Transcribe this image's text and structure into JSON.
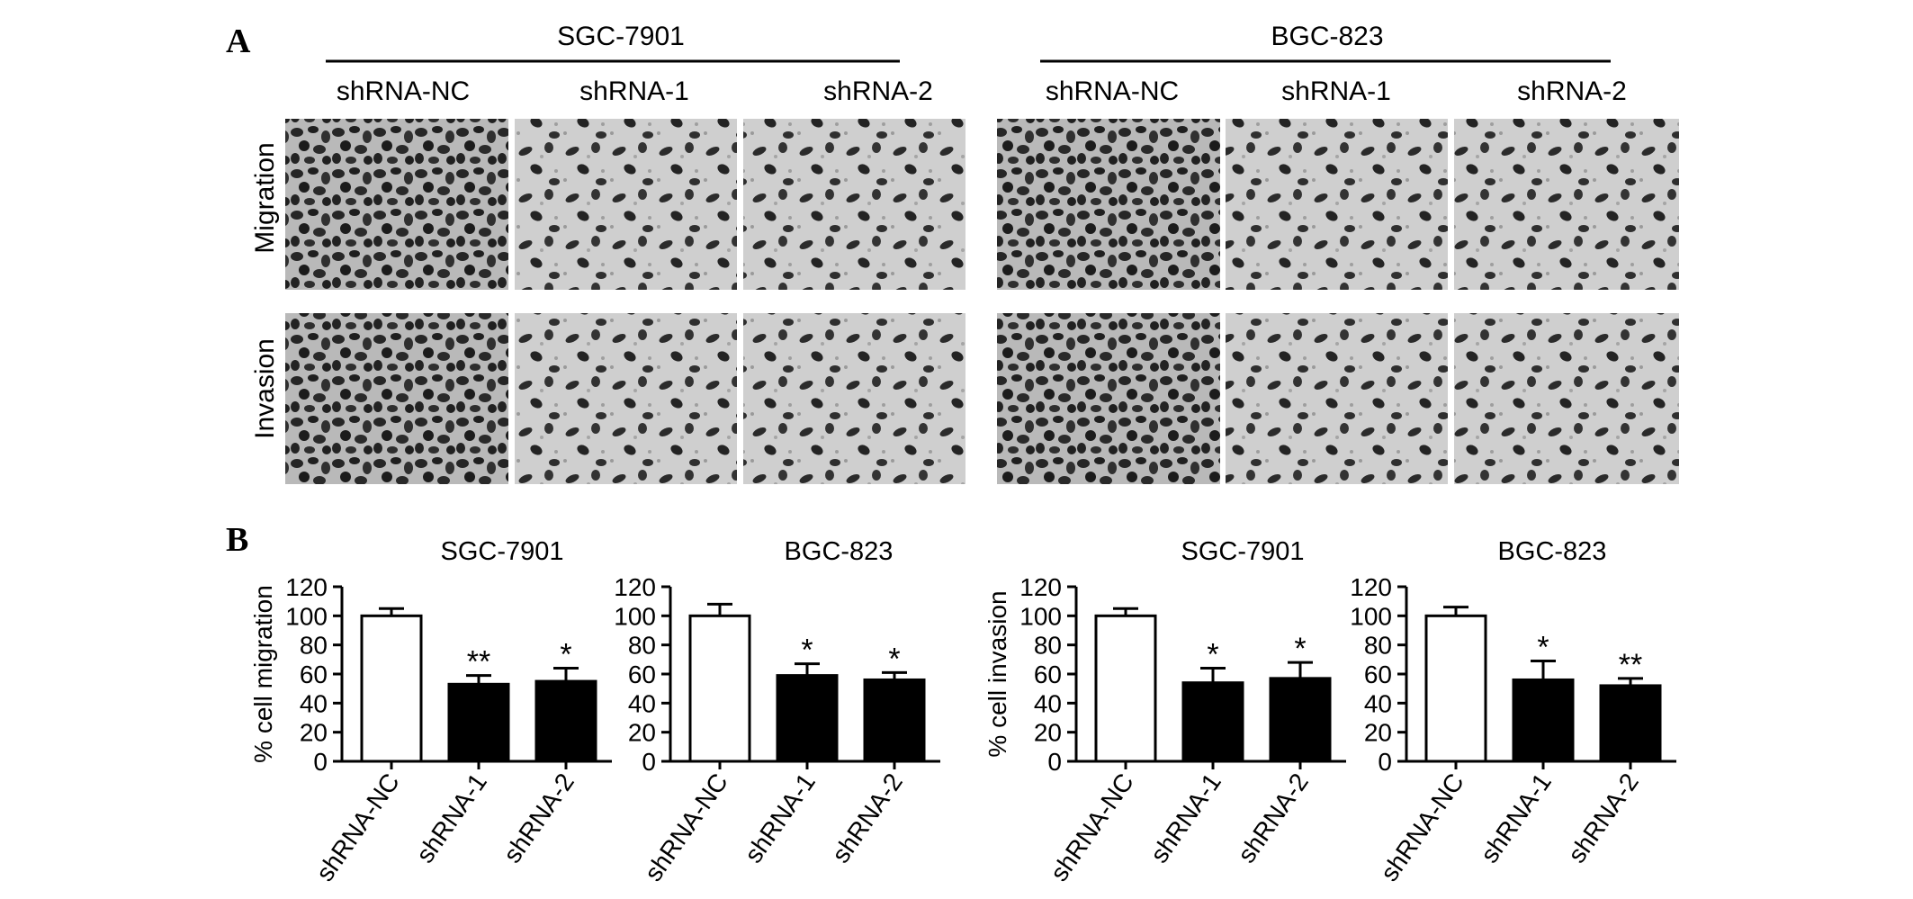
{
  "figure": {
    "panel_a": {
      "letter": "A",
      "groups": [
        {
          "title": "SGC-7901",
          "columns": [
            "shRNA-NC",
            "shRNA-1",
            "shRNA-2"
          ]
        },
        {
          "title": "BGC-823",
          "columns": [
            "shRNA-NC",
            "shRNA-1",
            "shRNA-2"
          ]
        }
      ],
      "rows": [
        "Migration",
        "Invasion"
      ],
      "image_density": {
        "note_levels": "relative cell density shown by the micrographs",
        "Migration": [
          [
            0.95,
            0.55,
            0.55
          ],
          [
            0.9,
            0.5,
            0.5
          ]
        ],
        "Invasion": [
          [
            0.95,
            0.5,
            0.5
          ],
          [
            0.9,
            0.5,
            0.5
          ]
        ]
      }
    },
    "panel_b": {
      "letter": "B"
    },
    "colors": {
      "control_fill": "#ffffff",
      "knockdown_fill": "#000000",
      "axis": "#000000"
    }
  },
  "chart_data": [
    {
      "type": "bar",
      "title": "SGC-7901",
      "ylabel": "% cell migration",
      "categories": [
        "shRNA-NC",
        "shRNA-1",
        "shRNA-2"
      ],
      "values": [
        100,
        53,
        55
      ],
      "errors": [
        5,
        6,
        9
      ],
      "significance": [
        "",
        "**",
        "*"
      ],
      "ylim": [
        0,
        120
      ],
      "yticks": [
        "0",
        "20",
        "40",
        "60",
        "80",
        "100",
        "120"
      ]
    },
    {
      "type": "bar",
      "title": "BGC-823",
      "ylabel": "",
      "categories": [
        "shRNA-NC",
        "shRNA-1",
        "shRNA-2"
      ],
      "values": [
        100,
        59,
        56
      ],
      "errors": [
        8,
        8,
        5
      ],
      "significance": [
        "",
        "*",
        "*"
      ],
      "ylim": [
        0,
        120
      ],
      "yticks": [
        "0",
        "20",
        "40",
        "60",
        "80",
        "100",
        "120"
      ]
    },
    {
      "type": "bar",
      "title": "SGC-7901",
      "ylabel": "% cell invasion",
      "categories": [
        "shRNA-NC",
        "shRNA-1",
        "shRNA-2"
      ],
      "values": [
        100,
        54,
        57
      ],
      "errors": [
        5,
        10,
        11
      ],
      "significance": [
        "",
        "*",
        "*"
      ],
      "ylim": [
        0,
        120
      ],
      "yticks": [
        "0",
        "20",
        "40",
        "60",
        "80",
        "100",
        "120"
      ]
    },
    {
      "type": "bar",
      "title": "BGC-823",
      "ylabel": "",
      "categories": [
        "shRNA-NC",
        "shRNA-1",
        "shRNA-2"
      ],
      "values": [
        100,
        56,
        52
      ],
      "errors": [
        6,
        13,
        5
      ],
      "significance": [
        "",
        "*",
        "**"
      ],
      "ylim": [
        0,
        120
      ],
      "yticks": [
        "0",
        "20",
        "40",
        "60",
        "80",
        "100",
        "120"
      ]
    }
  ]
}
